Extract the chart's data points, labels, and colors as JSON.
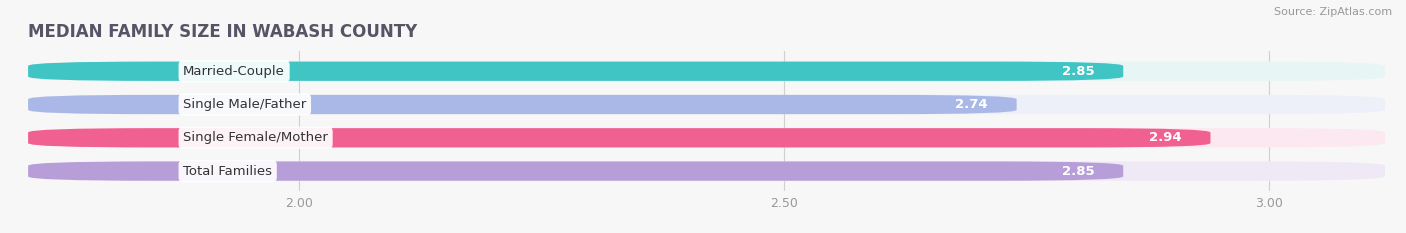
{
  "title": "MEDIAN FAMILY SIZE IN WABASH COUNTY",
  "source": "Source: ZipAtlas.com",
  "categories": [
    "Married-Couple",
    "Single Male/Father",
    "Single Female/Mother",
    "Total Families"
  ],
  "values": [
    2.85,
    2.74,
    2.94,
    2.85
  ],
  "bar_colors": [
    "#40c4c4",
    "#aab8e8",
    "#f06090",
    "#b89ed8"
  ],
  "bar_bg_colors": [
    "#e8f5f5",
    "#edf0f8",
    "#fce8f0",
    "#efe8f5"
  ],
  "label_text_colors": [
    "#444444",
    "#444444",
    "#444444",
    "#444444"
  ],
  "xlim_left": 1.72,
  "xlim_right": 3.12,
  "xaxis_min": 2.0,
  "xaxis_max": 3.0,
  "xticks": [
    2.0,
    2.5,
    3.0
  ],
  "xtick_labels": [
    "2.00",
    "2.50",
    "3.00"
  ],
  "label_fontsize": 9.5,
  "value_fontsize": 9.5,
  "title_fontsize": 12,
  "background_color": "#f7f7f7"
}
